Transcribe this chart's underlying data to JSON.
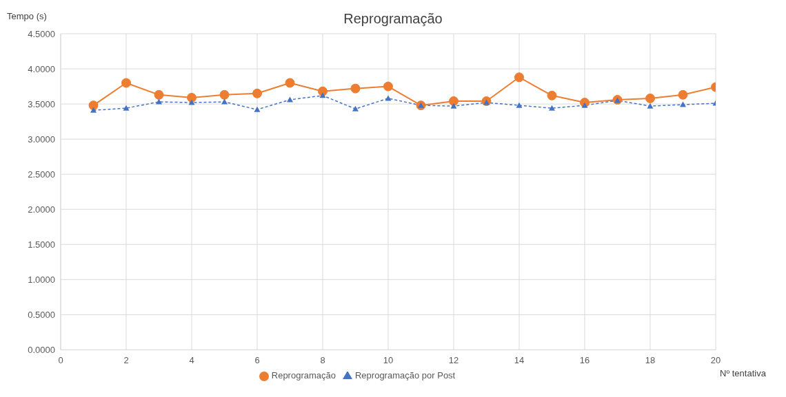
{
  "chart_data": {
    "type": "line",
    "title": "Reprogramação",
    "xlabel": "Nº tentativa",
    "ylabel": "Tempo (s)",
    "x": [
      1,
      2,
      3,
      4,
      5,
      6,
      7,
      8,
      9,
      10,
      11,
      12,
      13,
      14,
      15,
      16,
      17,
      18,
      19,
      20
    ],
    "series": [
      {
        "name": "Reprogramação",
        "color": "#ed7d31",
        "marker": "circle",
        "line_style": "solid",
        "values": [
          3.48,
          3.8,
          3.63,
          3.59,
          3.63,
          3.65,
          3.8,
          3.68,
          3.72,
          3.75,
          3.48,
          3.54,
          3.54,
          3.88,
          3.62,
          3.52,
          3.56,
          3.58,
          3.63,
          3.74
        ]
      },
      {
        "name": "Reprogramação por Post",
        "color": "#4472c4",
        "marker": "triangle",
        "line_style": "dashed",
        "values": [
          3.41,
          3.44,
          3.53,
          3.52,
          3.53,
          3.42,
          3.56,
          3.62,
          3.43,
          3.58,
          3.48,
          3.47,
          3.52,
          3.48,
          3.44,
          3.48,
          3.55,
          3.47,
          3.49,
          3.51
        ]
      }
    ],
    "xlim": [
      0,
      20
    ],
    "xticks": [
      0,
      2,
      4,
      6,
      8,
      10,
      12,
      14,
      16,
      18,
      20
    ],
    "ylim": [
      0,
      4.5
    ],
    "yticks": [
      {
        "value": 0,
        "label": "0.0000"
      },
      {
        "value": 0.5,
        "label": "0.5000"
      },
      {
        "value": 1,
        "label": "1.0000"
      },
      {
        "value": 1.5,
        "label": "1.5000"
      },
      {
        "value": 2,
        "label": "2.0000"
      },
      {
        "value": 2.5,
        "label": "2.5000"
      },
      {
        "value": 3,
        "label": "3.0000"
      },
      {
        "value": 3.5,
        "label": "3.5000"
      },
      {
        "value": 4,
        "label": "4.0000"
      },
      {
        "value": 4.5,
        "label": "4.5000"
      }
    ],
    "grid": true,
    "legend": "bottom"
  }
}
